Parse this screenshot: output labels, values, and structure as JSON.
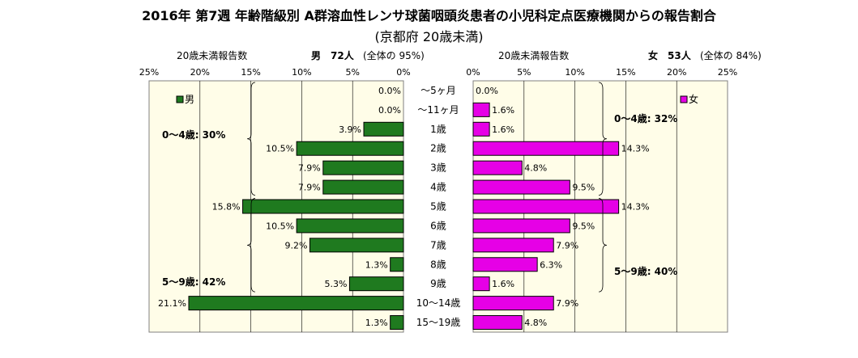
{
  "title": "2016年 第7週 年齢階級別 A群溶血性レンサ球菌咽頭炎患者の小児科定点医療機関からの報告割合",
  "subtitle": "(京都府 20歳未満)",
  "left_header": {
    "label": "20歳未満報告数",
    "sex": "男",
    "count": "72人",
    "share": "(全体の 95%)"
  },
  "right_header": {
    "label": "20歳未満報告数",
    "sex": "女",
    "count": "53人",
    "share": "(全体の 84%)"
  },
  "chart_data": {
    "type": "bar",
    "orientation": "horizontal-population-pyramid",
    "categories": [
      "〜5ヶ月",
      "〜11ヶ月",
      "1歳",
      "2歳",
      "3歳",
      "4歳",
      "5歳",
      "6歳",
      "7歳",
      "8歳",
      "9歳",
      "10〜14歳",
      "15〜19歳"
    ],
    "series": [
      {
        "name": "男",
        "side": "left",
        "color": "#1f7a1f",
        "values": [
          0.0,
          0.0,
          3.9,
          10.5,
          7.9,
          7.9,
          15.8,
          10.5,
          9.2,
          1.3,
          5.3,
          21.1,
          1.3
        ],
        "labels": [
          "0.0%",
          "0.0%",
          "3.9%",
          "10.5%",
          "7.9%",
          "7.9%",
          "15.8%",
          "10.5%",
          "9.2%",
          "1.3%",
          "5.3%",
          "21.1%",
          "1.3%"
        ]
      },
      {
        "name": "女",
        "side": "right",
        "color": "#e600e6",
        "values": [
          0.0,
          1.6,
          1.6,
          14.3,
          4.8,
          9.5,
          14.3,
          9.5,
          7.9,
          6.3,
          1.6,
          7.9,
          4.8
        ],
        "labels": [
          "0.0%",
          "1.6%",
          "1.6%",
          "14.3%",
          "4.8%",
          "9.5%",
          "14.3%",
          "9.5%",
          "7.9%",
          "6.3%",
          "1.6%",
          "7.9%",
          "4.8%"
        ]
      }
    ],
    "xlim": [
      0,
      25
    ],
    "x_ticks": [
      0,
      5,
      10,
      15,
      20,
      25
    ],
    "x_tick_labels": [
      "0%",
      "5%",
      "10%",
      "15%",
      "20%",
      "25%"
    ],
    "grid": true,
    "plot_background": "#fffde8",
    "annotations": {
      "left": [
        {
          "text": "0〜4歳: 30%",
          "from_row": 0,
          "to_row": 5
        },
        {
          "text": "5〜9歳: 42%",
          "from_row": 6,
          "to_row": 10
        }
      ],
      "right": [
        {
          "text": "0〜4歳: 32%",
          "from_row": 0,
          "to_row": 5
        },
        {
          "text": "5〜9歳: 40%",
          "from_row": 6,
          "to_row": 10
        }
      ]
    }
  }
}
